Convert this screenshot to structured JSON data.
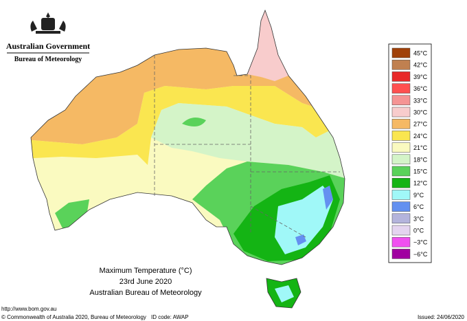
{
  "header": {
    "government": "Australian Government",
    "agency": "Bureau of Meteorology"
  },
  "legend": {
    "items": [
      {
        "label": "45°C",
        "color": "#a0410a"
      },
      {
        "label": "42°C",
        "color": "#c08050"
      },
      {
        "label": "39°C",
        "color": "#e82828"
      },
      {
        "label": "36°C",
        "color": "#ff5050"
      },
      {
        "label": "33°C",
        "color": "#f59494"
      },
      {
        "label": "30°C",
        "color": "#f8cccc"
      },
      {
        "label": "27°C",
        "color": "#f5b964"
      },
      {
        "label": "24°C",
        "color": "#fae650"
      },
      {
        "label": "21°C",
        "color": "#fafac0"
      },
      {
        "label": "18°C",
        "color": "#d4f4c8"
      },
      {
        "label": "15°C",
        "color": "#5ad25a"
      },
      {
        "label": "12°C",
        "color": "#14b414"
      },
      {
        "label": "9°C",
        "color": "#a0f8f8"
      },
      {
        "label": "6°C",
        "color": "#6490f0"
      },
      {
        "label": "3°C",
        "color": "#b4b4dc"
      },
      {
        "label": "0°C",
        "color": "#e4d4f0"
      },
      {
        "label": "−3°C",
        "color": "#f050f0"
      },
      {
        "label": "−6°C",
        "color": "#a000a0"
      }
    ]
  },
  "caption": {
    "title": "Maximum Temperature (°C)",
    "date": "23rd June 2020",
    "source": "Australian Bureau of Meteorology"
  },
  "footer": {
    "url": "http://www.bom.gov.au",
    "copyright": "© Commonwealth of Australia 2020, Bureau of Meteorology",
    "id_code": "ID code: AWAP",
    "issued": "Issued: 24/06/2020"
  }
}
